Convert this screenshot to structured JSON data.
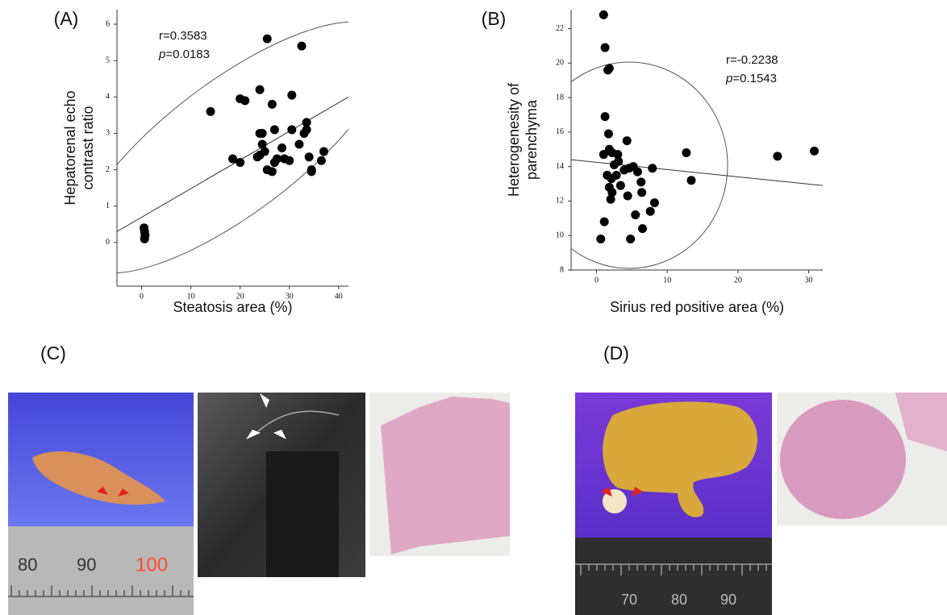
{
  "chart_data": [
    {
      "type": "scatter",
      "panel_label": "(A)",
      "x_label": "Steatosis area (%)",
      "y_label": [
        "Hepatorenal echo",
        "contrast ratio"
      ],
      "annotations": [
        {
          "text": "r=0.3583"
        },
        {
          "italic": "p",
          "text": "=0.0183"
        }
      ],
      "xlim": [
        -5,
        42
      ],
      "ylim": [
        -1.2,
        6.4
      ],
      "xticks": [
        0,
        10,
        20,
        30,
        40
      ],
      "yticks": [
        0,
        1,
        2,
        3,
        4,
        5,
        6
      ],
      "color": "#000000",
      "x": [
        0.5,
        0.6,
        0.7,
        0.6,
        14,
        20,
        21,
        20,
        18.5,
        24,
        25.5,
        32.5,
        30.5,
        26.5,
        24,
        24.5,
        24,
        24.5,
        25,
        23.5,
        27,
        27.5,
        27,
        25.5,
        26.5,
        28.5,
        29,
        30,
        30.5,
        33,
        33.5,
        33.5,
        34,
        34.5,
        34.5,
        36.5,
        37,
        32
      ],
      "values": [
        0.4,
        0.3,
        0.2,
        0.1,
        3.6,
        3.95,
        3.9,
        2.2,
        2.3,
        4.2,
        5.6,
        5.4,
        4.05,
        3.8,
        3.0,
        3.0,
        2.4,
        2.7,
        2.5,
        2.35,
        3.1,
        2.3,
        2.2,
        2.0,
        1.95,
        2.6,
        2.3,
        2.25,
        3.1,
        3.0,
        3.3,
        3.1,
        2.35,
        2.0,
        1.95,
        2.25,
        2.5,
        2.7
      ],
      "fit_line": {
        "x": [
          -5,
          42
        ],
        "y": [
          0.3,
          4.0
        ]
      }
    },
    {
      "type": "scatter",
      "panel_label": "(B)",
      "x_label": "Sirius red positive area (%)",
      "y_label": [
        "Heterogenesity of",
        "parenchyma"
      ],
      "annotations": [
        {
          "text": "r=-0.2238"
        },
        {
          "italic": "p",
          "text": "=0.1543"
        }
      ],
      "xlim": [
        -3.6,
        32
      ],
      "ylim": [
        8,
        23.1
      ],
      "xticks": [
        0,
        10,
        20,
        30
      ],
      "yticks": [
        8,
        10,
        12,
        14,
        16,
        18,
        20,
        22
      ],
      "color": "#000000",
      "x": [
        1.0,
        1.2,
        1.6,
        1.8,
        1.2,
        1.7,
        1.0,
        1.8,
        2.2,
        3.0,
        2.5,
        3.1,
        4.3,
        1.5,
        2.1,
        2.8,
        1.8,
        2.2,
        2.0,
        3.4,
        3.9,
        4.6,
        5.2,
        5.8,
        6.3,
        6.4,
        4.4,
        7.9,
        8.2,
        7.6,
        5.5,
        6.5,
        4.8,
        1.1,
        0.6,
        12.7,
        13.4,
        25.6,
        30.8
      ],
      "values": [
        22.8,
        20.9,
        19.6,
        19.7,
        16.9,
        15.9,
        14.7,
        15.0,
        14.8,
        14.7,
        14.1,
        14.3,
        15.5,
        13.5,
        13.3,
        13.5,
        12.8,
        12.5,
        12.1,
        12.9,
        13.8,
        13.9,
        14.0,
        13.7,
        13.1,
        12.5,
        12.3,
        13.9,
        11.9,
        11.4,
        11.2,
        10.4,
        9.8,
        10.8,
        9.8,
        14.8,
        13.2,
        14.6,
        14.9
      ],
      "fit_line": {
        "x": [
          -3.6,
          32
        ],
        "y": [
          14.4,
          12.9
        ]
      }
    }
  ],
  "panels": [
    {
      "label": "(C)",
      "ruler_labels": [
        "80",
        "90",
        "100"
      ]
    },
    {
      "label": "(D)",
      "ruler_labels": [
        "70",
        "80",
        "90"
      ]
    }
  ]
}
